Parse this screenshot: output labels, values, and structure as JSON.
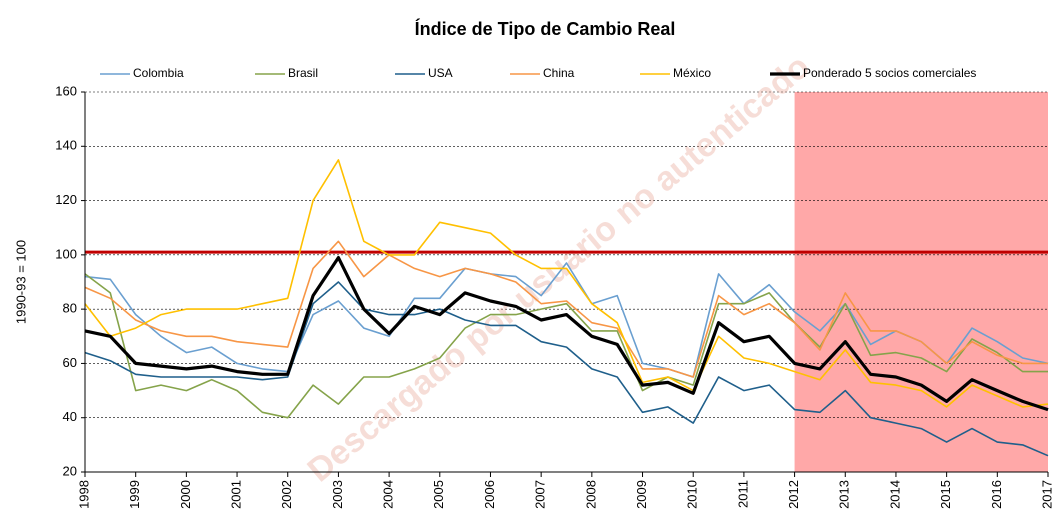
{
  "chart_data": {
    "type": "line",
    "title": "Índice de Tipo de Cambio Real",
    "y_label": "1990-93 = 100",
    "watermark": "Descargado por usuario no autenticado",
    "x": [
      1998,
      1998.5,
      1999,
      1999.5,
      2000,
      2000.5,
      2001,
      2001.5,
      2002,
      2002.5,
      2003,
      2003.5,
      2004,
      2004.5,
      2005,
      2005.5,
      2006,
      2006.5,
      2007,
      2007.5,
      2008,
      2008.5,
      2009,
      2009.5,
      2010,
      2010.5,
      2011,
      2011.5,
      2012,
      2012.5,
      2013,
      2013.5,
      2014,
      2014.5,
      2015,
      2015.5,
      2016,
      2016.5,
      2017
    ],
    "series": [
      {
        "name": "Colombia",
        "color": "#6a9fd0",
        "width": 1.6,
        "values": [
          92,
          91,
          78,
          70,
          64,
          66,
          60,
          58,
          57,
          78,
          83,
          73,
          70,
          84,
          84,
          95,
          93,
          92,
          85,
          97,
          82,
          85,
          60,
          58,
          55,
          93,
          82,
          89,
          79,
          72,
          82,
          67,
          72,
          68,
          60,
          73,
          68,
          62,
          60
        ]
      },
      {
        "name": "Brasil",
        "color": "#85a34a",
        "width": 1.6,
        "values": [
          93,
          86,
          50,
          52,
          50,
          54,
          50,
          42,
          40,
          52,
          45,
          55,
          55,
          58,
          62,
          73,
          78,
          78,
          80,
          82,
          72,
          72,
          50,
          55,
          52,
          82,
          82,
          86,
          75,
          66,
          82,
          63,
          64,
          62,
          57,
          69,
          64,
          57,
          57
        ]
      },
      {
        "name": "USA",
        "color": "#1f5f8b",
        "width": 1.6,
        "values": [
          64,
          61,
          56,
          55,
          55,
          55,
          55,
          54,
          55,
          82,
          90,
          80,
          78,
          78,
          80,
          76,
          74,
          74,
          68,
          66,
          58,
          55,
          42,
          44,
          38,
          55,
          50,
          52,
          43,
          42,
          50,
          40,
          38,
          36,
          31,
          36,
          31,
          30,
          26
        ]
      },
      {
        "name": "China",
        "color": "#f79646",
        "width": 1.6,
        "values": [
          88,
          84,
          76,
          72,
          70,
          70,
          68,
          67,
          66,
          95,
          105,
          92,
          100,
          95,
          92,
          95,
          93,
          90,
          82,
          83,
          75,
          73,
          58,
          58,
          55,
          85,
          78,
          82,
          75,
          65,
          86,
          72,
          72,
          68,
          60,
          68,
          63,
          60,
          60
        ]
      },
      {
        "name": "México",
        "color": "#ffc000",
        "width": 1.6,
        "values": [
          82,
          70,
          73,
          78,
          80,
          80,
          80,
          82,
          84,
          120,
          135,
          105,
          100,
          100,
          112,
          110,
          108,
          100,
          95,
          95,
          82,
          75,
          53,
          55,
          50,
          70,
          62,
          60,
          57,
          54,
          65,
          53,
          52,
          50,
          44,
          52,
          48,
          44,
          45
        ]
      },
      {
        "name": "Ponderado 5 socios comerciales",
        "color": "#000000",
        "width": 3.2,
        "values": [
          72,
          70,
          60,
          59,
          58,
          59,
          57,
          56,
          56,
          85,
          99,
          80,
          71,
          81,
          78,
          86,
          83,
          81,
          76,
          78,
          70,
          67,
          52,
          53,
          49,
          75,
          68,
          70,
          60,
          58,
          68,
          56,
          55,
          52,
          46,
          54,
          50,
          46,
          43
        ]
      }
    ],
    "reference_line": {
      "value": 101,
      "color": "#c00000"
    },
    "shaded_region": {
      "xlim": [
        2012,
        2017
      ],
      "color": "#ff9999"
    },
    "xlim": [
      1998,
      2017
    ],
    "xticks": [
      1998,
      1999,
      2000,
      2001,
      2002,
      2003,
      2004,
      2005,
      2006,
      2007,
      2008,
      2009,
      2010,
      2011,
      2012,
      2013,
      2014,
      2015,
      2016,
      2017
    ],
    "ylim": [
      20,
      160
    ],
    "yticks": [
      20,
      40,
      60,
      80,
      100,
      120,
      140,
      160
    ],
    "grid": true
  }
}
